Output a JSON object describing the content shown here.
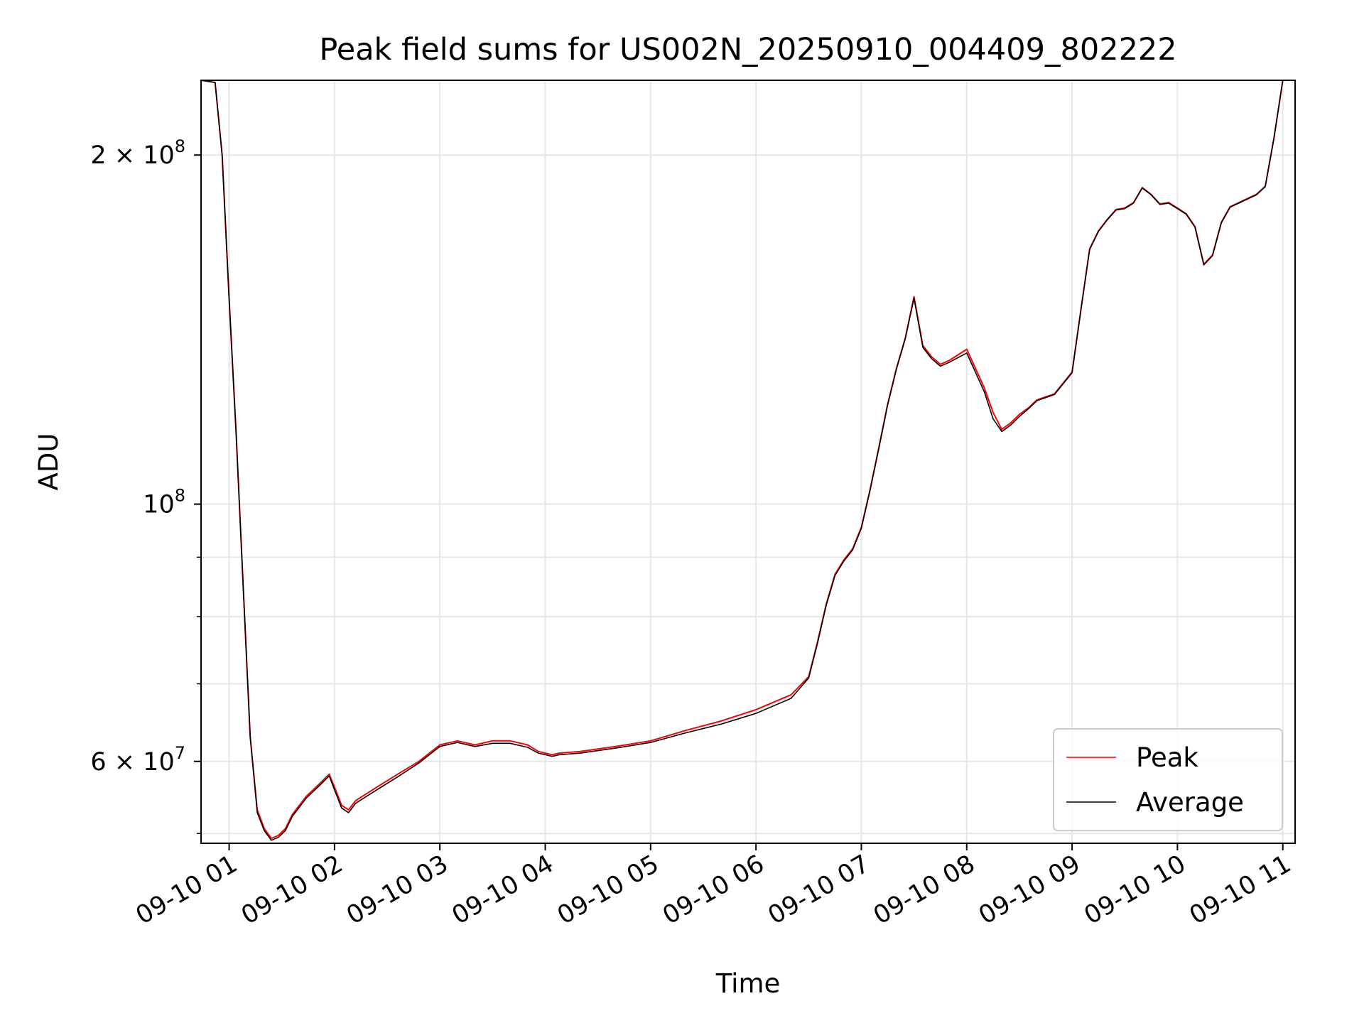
{
  "chart_data": {
    "type": "line",
    "title": "Peak field sums for US002N_20250910_004409_802222",
    "xlabel": "Time",
    "ylabel": "ADU",
    "yscale": "log",
    "grid": true,
    "legend_position": "lower right",
    "x_tick_labels": [
      "09-10 01",
      "09-10 02",
      "09-10 03",
      "09-10 04",
      "09-10 05",
      "09-10 06",
      "09-10 07",
      "09-10 08",
      "09-10 09",
      "09-10 10",
      "09-10 11"
    ],
    "xlim": [
      "2025-09-10T00:44",
      "2025-09-10T11:07"
    ],
    "ylim": [
      51000000,
      232000000
    ],
    "y_major_ticks": [
      {
        "value": 60000000,
        "label": "6 × 10⁷",
        "mantissa": "6 × 10",
        "exp": "7"
      },
      {
        "value": 100000000,
        "label": "10⁸",
        "mantissa": "10",
        "exp": "8"
      },
      {
        "value": 200000000,
        "label": "2 × 10⁸",
        "mantissa": "2 × 10",
        "exp": "8"
      }
    ],
    "y_minor_ticks": [
      70000000,
      80000000,
      90000000
    ],
    "series": [
      {
        "name": "Peak",
        "color": "#ff0000",
        "x": [
          "2025-09-10T00:44",
          "2025-09-10T00:52",
          "2025-09-10T00:56",
          "2025-09-10T01:00",
          "2025-09-10T01:04",
          "2025-09-10T01:08",
          "2025-09-10T01:12",
          "2025-09-10T01:16",
          "2025-09-10T01:20",
          "2025-09-10T01:24",
          "2025-09-10T01:28",
          "2025-09-10T01:32",
          "2025-09-10T01:36",
          "2025-09-10T01:44",
          "2025-09-10T01:52",
          "2025-09-10T01:57",
          "2025-09-10T02:00",
          "2025-09-10T02:04",
          "2025-09-10T02:08",
          "2025-09-10T02:12",
          "2025-09-10T02:16",
          "2025-09-10T02:24",
          "2025-09-10T02:36",
          "2025-09-10T02:48",
          "2025-09-10T03:00",
          "2025-09-10T03:10",
          "2025-09-10T03:20",
          "2025-09-10T03:30",
          "2025-09-10T03:40",
          "2025-09-10T03:50",
          "2025-09-10T03:56",
          "2025-09-10T04:00",
          "2025-09-10T04:04",
          "2025-09-10T04:08",
          "2025-09-10T04:20",
          "2025-09-10T04:40",
          "2025-09-10T05:00",
          "2025-09-10T05:20",
          "2025-09-10T05:40",
          "2025-09-10T06:00",
          "2025-09-10T06:20",
          "2025-09-10T06:30",
          "2025-09-10T06:35",
          "2025-09-10T06:40",
          "2025-09-10T06:45",
          "2025-09-10T06:50",
          "2025-09-10T06:55",
          "2025-09-10T07:00",
          "2025-09-10T07:05",
          "2025-09-10T07:10",
          "2025-09-10T07:15",
          "2025-09-10T07:20",
          "2025-09-10T07:25",
          "2025-09-10T07:30",
          "2025-09-10T07:35",
          "2025-09-10T07:40",
          "2025-09-10T07:45",
          "2025-09-10T07:50",
          "2025-09-10T08:00",
          "2025-09-10T08:10",
          "2025-09-10T08:15",
          "2025-09-10T08:20",
          "2025-09-10T08:25",
          "2025-09-10T08:30",
          "2025-09-10T08:35",
          "2025-09-10T08:40",
          "2025-09-10T08:50",
          "2025-09-10T09:00",
          "2025-09-10T09:05",
          "2025-09-10T09:10",
          "2025-09-10T09:15",
          "2025-09-10T09:20",
          "2025-09-10T09:25",
          "2025-09-10T09:30",
          "2025-09-10T09:35",
          "2025-09-10T09:40",
          "2025-09-10T09:45",
          "2025-09-10T09:50",
          "2025-09-10T09:55",
          "2025-09-10T10:00",
          "2025-09-10T10:05",
          "2025-09-10T10:10",
          "2025-09-10T10:15",
          "2025-09-10T10:20",
          "2025-09-10T10:25",
          "2025-09-10T10:30",
          "2025-09-10T10:35",
          "2025-09-10T10:40",
          "2025-09-10T10:45",
          "2025-09-10T10:50",
          "2025-09-10T10:55",
          "2025-09-10T11:00"
        ],
        "y": [
          232000000,
          231000000,
          200000000,
          150000000,
          115000000,
          85000000,
          63000000,
          54500000,
          52500000,
          51500000,
          51800000,
          52500000,
          54000000,
          56000000,
          57500000,
          58500000,
          57000000,
          55000000,
          54500000,
          55500000,
          56000000,
          57000000,
          58500000,
          60000000,
          62000000,
          62500000,
          62000000,
          62500000,
          62500000,
          62000000,
          61200000,
          61000000,
          60800000,
          61000000,
          61200000,
          61800000,
          62500000,
          63800000,
          65000000,
          66500000,
          68500000,
          71000000,
          76000000,
          82000000,
          87000000,
          89500000,
          91500000,
          95500000,
          103000000,
          112000000,
          122000000,
          131000000,
          139000000,
          151000000,
          137000000,
          134000000,
          132000000,
          133000000,
          136000000,
          126000000,
          120000000,
          116000000,
          117500000,
          119500000,
          121000000,
          123000000,
          124500000,
          130000000,
          147000000,
          166000000,
          172000000,
          176000000,
          179500000,
          180000000,
          182000000,
          187500000,
          185000000,
          181500000,
          182000000,
          180000000,
          178000000,
          173500000,
          161000000,
          164000000,
          175000000,
          180500000,
          182000000,
          183500000,
          185000000,
          188000000,
          207000000,
          232000000
        ]
      },
      {
        "name": "Average",
        "color": "#000000",
        "x": [
          "2025-09-10T00:44",
          "2025-09-10T00:52",
          "2025-09-10T00:56",
          "2025-09-10T01:00",
          "2025-09-10T01:04",
          "2025-09-10T01:08",
          "2025-09-10T01:12",
          "2025-09-10T01:16",
          "2025-09-10T01:20",
          "2025-09-10T01:24",
          "2025-09-10T01:28",
          "2025-09-10T01:32",
          "2025-09-10T01:36",
          "2025-09-10T01:44",
          "2025-09-10T01:52",
          "2025-09-10T01:57",
          "2025-09-10T02:00",
          "2025-09-10T02:04",
          "2025-09-10T02:08",
          "2025-09-10T02:12",
          "2025-09-10T02:16",
          "2025-09-10T02:24",
          "2025-09-10T02:36",
          "2025-09-10T02:48",
          "2025-09-10T03:00",
          "2025-09-10T03:10",
          "2025-09-10T03:20",
          "2025-09-10T03:30",
          "2025-09-10T03:40",
          "2025-09-10T03:50",
          "2025-09-10T03:56",
          "2025-09-10T04:00",
          "2025-09-10T04:04",
          "2025-09-10T04:08",
          "2025-09-10T04:20",
          "2025-09-10T04:40",
          "2025-09-10T05:00",
          "2025-09-10T05:20",
          "2025-09-10T05:40",
          "2025-09-10T06:00",
          "2025-09-10T06:20",
          "2025-09-10T06:30",
          "2025-09-10T06:35",
          "2025-09-10T06:40",
          "2025-09-10T06:45",
          "2025-09-10T06:50",
          "2025-09-10T06:55",
          "2025-09-10T07:00",
          "2025-09-10T07:05",
          "2025-09-10T07:10",
          "2025-09-10T07:15",
          "2025-09-10T07:20",
          "2025-09-10T07:25",
          "2025-09-10T07:30",
          "2025-09-10T07:35",
          "2025-09-10T07:40",
          "2025-09-10T07:45",
          "2025-09-10T07:50",
          "2025-09-10T08:00",
          "2025-09-10T08:10",
          "2025-09-10T08:15",
          "2025-09-10T08:20",
          "2025-09-10T08:25",
          "2025-09-10T08:30",
          "2025-09-10T08:35",
          "2025-09-10T08:40",
          "2025-09-10T08:50",
          "2025-09-10T09:00",
          "2025-09-10T09:05",
          "2025-09-10T09:10",
          "2025-09-10T09:15",
          "2025-09-10T09:20",
          "2025-09-10T09:25",
          "2025-09-10T09:30",
          "2025-09-10T09:35",
          "2025-09-10T09:40",
          "2025-09-10T09:45",
          "2025-09-10T09:50",
          "2025-09-10T09:55",
          "2025-09-10T10:00",
          "2025-09-10T10:05",
          "2025-09-10T10:10",
          "2025-09-10T10:15",
          "2025-09-10T10:20",
          "2025-09-10T10:25",
          "2025-09-10T10:30",
          "2025-09-10T10:35",
          "2025-09-10T10:40",
          "2025-09-10T10:45",
          "2025-09-10T10:50",
          "2025-09-10T10:55",
          "2025-09-10T11:00"
        ],
        "y": [
          232000000,
          231000000,
          200000000,
          150000000,
          115000000,
          85000000,
          63000000,
          54200000,
          52300000,
          51300000,
          51600000,
          52300000,
          53800000,
          55800000,
          57300000,
          58300000,
          56700000,
          54700000,
          54200000,
          55200000,
          55700000,
          56700000,
          58200000,
          59800000,
          61800000,
          62300000,
          61800000,
          62200000,
          62200000,
          61700000,
          61000000,
          60800000,
          60600000,
          60800000,
          61000000,
          61600000,
          62300000,
          63500000,
          64600000,
          66000000,
          68000000,
          70800000,
          75800000,
          81800000,
          86800000,
          89300000,
          91300000,
          95300000,
          102800000,
          111800000,
          121800000,
          130800000,
          138800000,
          150500000,
          136500000,
          133500000,
          131500000,
          132500000,
          135000000,
          125000000,
          118500000,
          115500000,
          117000000,
          119000000,
          120800000,
          122800000,
          124300000,
          129800000,
          146800000,
          165800000,
          171800000,
          175800000,
          179300000,
          179800000,
          181800000,
          187300000,
          184800000,
          181300000,
          181800000,
          179800000,
          177800000,
          173300000,
          160800000,
          163800000,
          174800000,
          180300000,
          181800000,
          183300000,
          184800000,
          187800000,
          206800000,
          232000000
        ]
      }
    ]
  }
}
